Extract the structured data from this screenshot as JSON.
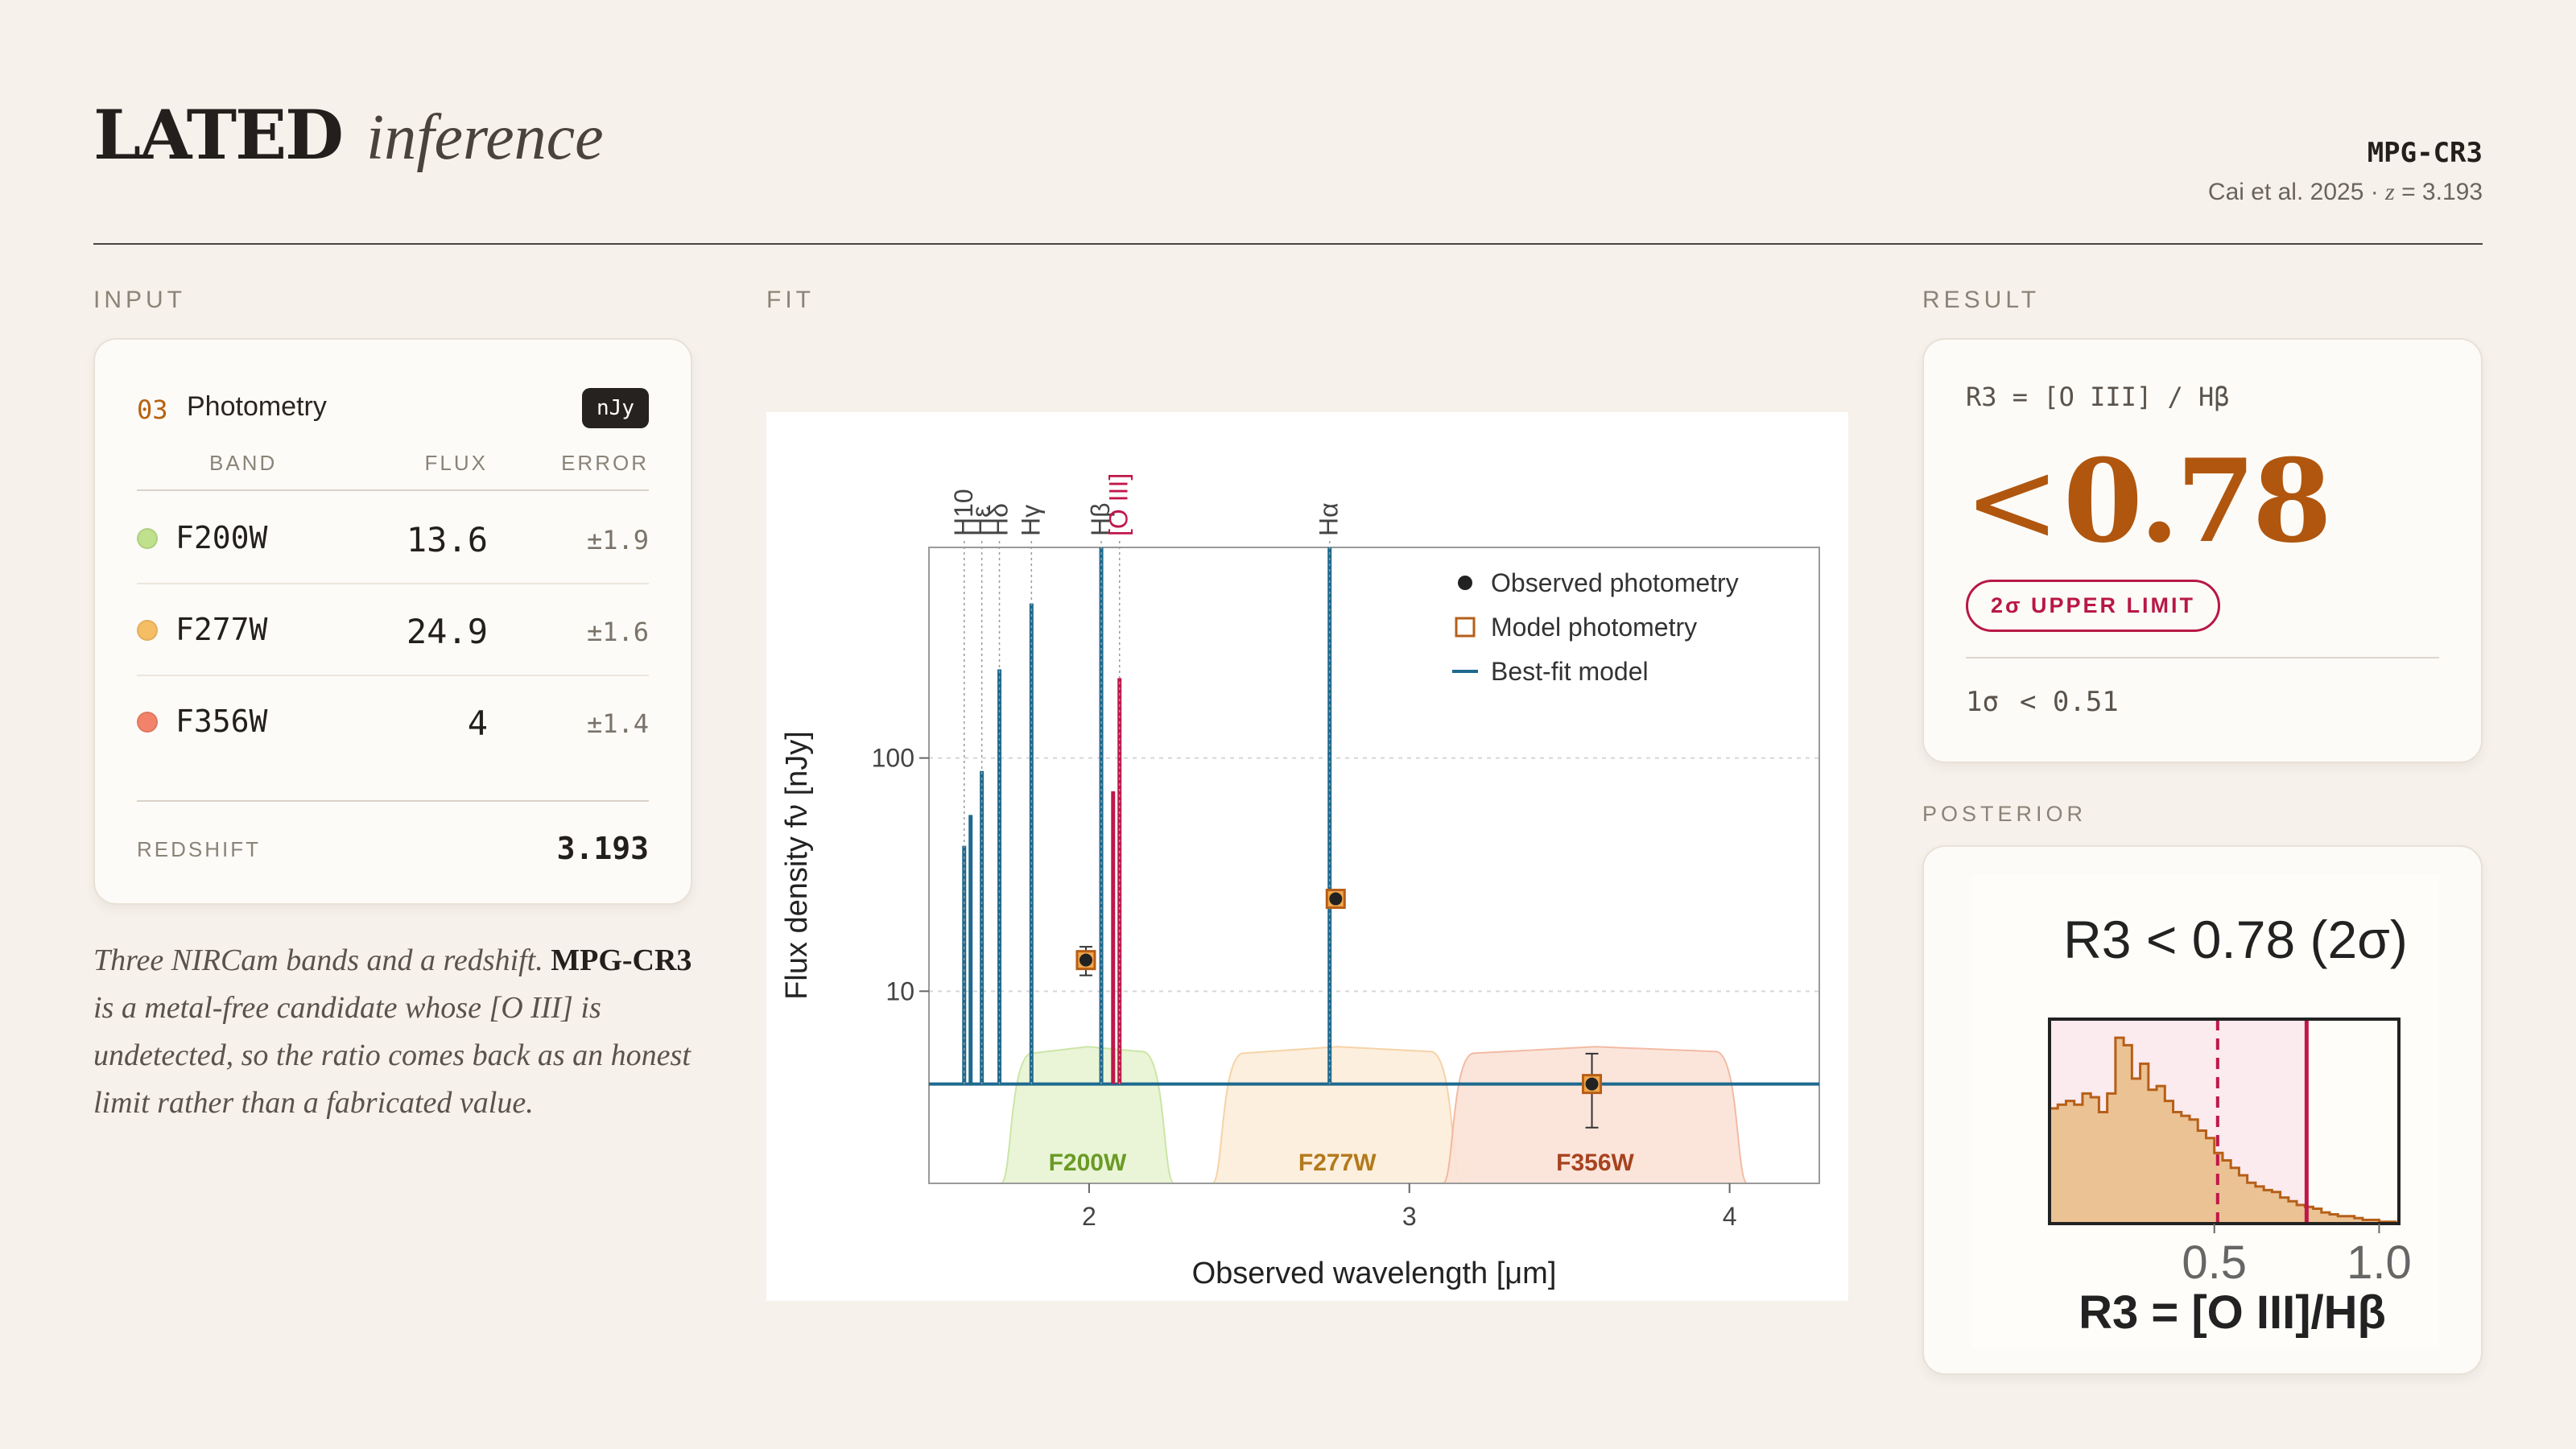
{
  "header": {
    "title": "LATED",
    "subtitle": "inference",
    "object_id": "MPG-CR3",
    "reference": "Cai et al. 2025 · ",
    "z_symbol": "z",
    "z_text": " = 3.193"
  },
  "sections": {
    "input": "INPUT",
    "fit": "FIT",
    "result": "RESULT",
    "posterior": "POSTERIOR"
  },
  "photometry": {
    "number": "03",
    "title": "Photometry",
    "unit": "nJy",
    "columns": {
      "band": "BAND",
      "flux": "FLUX",
      "error": "ERROR"
    },
    "rows": [
      {
        "band": "F200W",
        "flux": "13.6",
        "error": "±1.9",
        "color": "#bfe18c"
      },
      {
        "band": "F277W",
        "flux": "24.9",
        "error": "±1.6",
        "color": "#f6be64"
      },
      {
        "band": "F356W",
        "flux": "4",
        "error": "±1.4",
        "color": "#f2836a"
      }
    ],
    "redshift_label": "REDSHIFT",
    "redshift_value": "3.193"
  },
  "description": {
    "p1": "Three NIRCam bands and a redshift. ",
    "obj": "MPG-CR3",
    "p2": " is a metal-free candidate whose [O III] is undetected, so the ratio comes back as an honest limit rather than a fabricated value."
  },
  "result": {
    "formula": "R3 = [O III] / Hβ",
    "lt": "<",
    "value": "0.78",
    "badge": "2σ UPPER LIMIT",
    "one_sigma_label": "1σ",
    "one_sigma_value": "< 0.51"
  },
  "chart_data": [
    {
      "type": "line",
      "xlabel": "Observed wavelength [μm]",
      "ylabel": "Flux density fν [nJy]",
      "x_range": [
        1.5,
        4.28
      ],
      "y_range": [
        1.5,
        800
      ],
      "y_scale": "log",
      "xticks": [
        2,
        3,
        4
      ],
      "yticks": [
        10,
        100
      ],
      "grid": "y-dotted",
      "legend_position": "top-right",
      "legend": [
        "Observed photometry",
        "Model photometry",
        "Best-fit model"
      ],
      "continuum_level": 4.0,
      "emission_lines": [
        {
          "label": "H10",
          "wavelength": 1.61,
          "peak": 42,
          "color": "#1e6a8f"
        },
        {
          "label": "Hε",
          "wavelength": 1.665,
          "peak": 88,
          "color": "#1e6a8f"
        },
        {
          "label": "Hδ",
          "wavelength": 1.72,
          "peak": 240,
          "color": "#1e6a8f"
        },
        {
          "label": "Hγ",
          "wavelength": 1.82,
          "peak": 460,
          "color": "#1e6a8f"
        },
        {
          "label": "Hβ",
          "wavelength": 2.038,
          "peak": 800,
          "color": "#1e6a8f"
        },
        {
          "label": "[O III]",
          "wavelength": 2.095,
          "peak": 220,
          "color": "#c0174a"
        },
        {
          "label": "Hα",
          "wavelength": 2.751,
          "peak": 800,
          "color": "#1e6a8f"
        }
      ],
      "unlabeled_lines": [
        {
          "wavelength": 1.63,
          "peak": 57,
          "color": "#1e6a8f"
        },
        {
          "wavelength": 2.075,
          "peak": 72,
          "color": "#c0174a"
        }
      ],
      "observed": [
        {
          "band": "F200W",
          "x": 1.99,
          "y": 13.6,
          "err": 1.9
        },
        {
          "band": "F277W",
          "x": 2.77,
          "y": 24.9,
          "err": 1.6
        },
        {
          "band": "F356W",
          "x": 3.57,
          "y": 4.0,
          "err": 1.4
        }
      ],
      "model": [
        {
          "band": "F200W",
          "x": 1.99,
          "y": 13.6
        },
        {
          "band": "F277W",
          "x": 2.77,
          "y": 24.9
        },
        {
          "band": "F356W",
          "x": 3.57,
          "y": 4.0
        }
      ],
      "filters": [
        {
          "name": "F200W",
          "lo": 1.76,
          "hi": 2.23,
          "fill": "#e8f5d3",
          "edge": "#c6e39e",
          "text": "#6a9a26"
        },
        {
          "name": "F277W",
          "lo": 2.42,
          "hi": 3.13,
          "fill": "#fdeedb",
          "edge": "#f5cf9e",
          "text": "#b27a1c"
        },
        {
          "name": "F356W",
          "lo": 3.14,
          "hi": 4.02,
          "fill": "#fbe3d8",
          "edge": "#f2b39a",
          "text": "#a6431f"
        }
      ]
    },
    {
      "type": "bar",
      "title": "R3 < 0.78 (2σ)",
      "xlabel": "R3 = [O III]/Hβ",
      "x_range": [
        0.0,
        1.06
      ],
      "xticks": [
        0.5,
        1.0
      ],
      "bin_width": 0.025,
      "values": [
        62,
        64,
        66,
        64,
        70,
        68,
        60,
        70,
        100,
        96,
        78,
        86,
        72,
        74,
        66,
        60,
        58,
        56,
        50,
        46,
        38,
        34,
        30,
        26,
        22,
        20,
        18,
        17,
        14,
        12,
        10,
        9,
        8,
        6,
        5,
        4,
        4,
        3,
        2,
        2,
        1,
        1
      ],
      "one_sigma_limit": 0.51,
      "two_sigma_limit": 0.78,
      "colors": {
        "hist": "#ebc293",
        "hist_edge": "#b65f18",
        "limit": "#c0174a",
        "shade": "#fbeaee"
      }
    }
  ]
}
